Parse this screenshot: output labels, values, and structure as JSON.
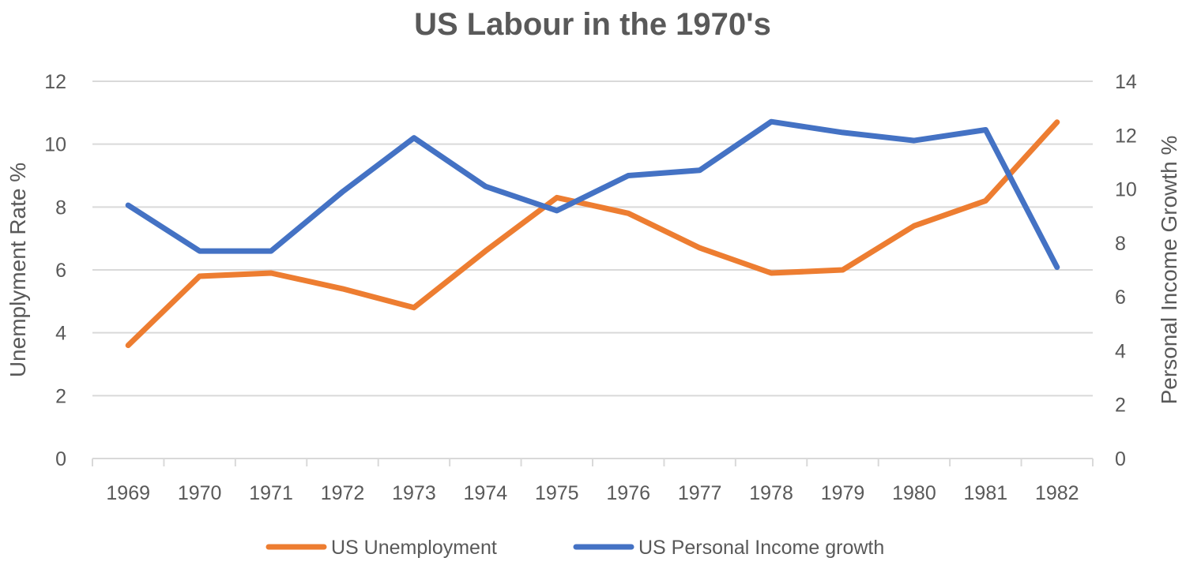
{
  "chart_data": {
    "type": "line",
    "title": "US Labour in the 1970's",
    "categories": [
      "1969",
      "1970",
      "1971",
      "1972",
      "1973",
      "1974",
      "1975",
      "1976",
      "1977",
      "1978",
      "1979",
      "1980",
      "1981",
      "1982"
    ],
    "y_left": {
      "label": "Unemplyment Rate %",
      "ylim": [
        0,
        12
      ],
      "ticks": [
        "0",
        "2",
        "4",
        "6",
        "8",
        "10",
        "12"
      ]
    },
    "y_right": {
      "label": "Personal Income Growth %",
      "ylim": [
        0,
        14
      ],
      "ticks": [
        "0",
        "2",
        "4",
        "6",
        "8",
        "10",
        "12",
        "14"
      ]
    },
    "grid": true,
    "legend_position": "bottom",
    "series": [
      {
        "name": "US Unemployment",
        "axis": "left",
        "color": "#ed7d31",
        "values": [
          3.6,
          5.8,
          5.9,
          5.4,
          4.8,
          6.6,
          8.3,
          7.8,
          6.7,
          5.9,
          6.0,
          7.4,
          8.2,
          10.7
        ]
      },
      {
        "name": "US Personal Income growth",
        "axis": "right",
        "color": "#4472c4",
        "values": [
          9.4,
          7.7,
          7.7,
          9.9,
          11.9,
          10.1,
          9.2,
          10.5,
          10.7,
          12.5,
          12.1,
          11.8,
          12.2,
          7.1
        ]
      }
    ]
  }
}
